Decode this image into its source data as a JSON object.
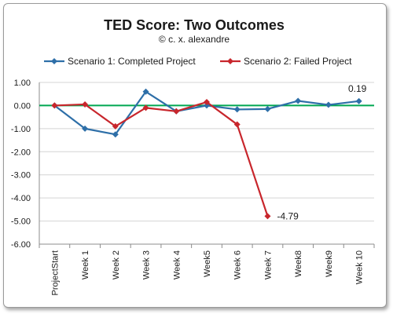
{
  "chart_data": {
    "type": "line",
    "title": "TED Score: Two Outcomes",
    "subtitle": "© c. x. alexandre",
    "categories": [
      "ProjectStart",
      "Week 1",
      "Week 2",
      "Week 3",
      "Week 4",
      "Week5",
      "Week 6",
      "Week 7",
      "Week8",
      "Week9",
      "Week 10"
    ],
    "ylim": [
      -6.0,
      1.0
    ],
    "yticks": [
      "1.00",
      "0.00",
      "-1.00",
      "-2.00",
      "-3.00",
      "-4.00",
      "-5.00",
      "-6.00"
    ],
    "ytick_values": [
      1,
      0,
      -1,
      -2,
      -3,
      -4,
      -5,
      -6
    ],
    "grid": true,
    "legend_position": "top",
    "zero_line_color": "#00a651",
    "series": [
      {
        "name": "Scenario 1: Completed Project",
        "color": "#2e6fa8",
        "marker": "diamond",
        "values": [
          0.0,
          -1.0,
          -1.25,
          0.6,
          -0.25,
          0.0,
          -0.17,
          -0.15,
          0.2,
          0.03,
          0.19
        ]
      },
      {
        "name": "Scenario 2: Failed Project",
        "color": "#c8262c",
        "marker": "diamond",
        "values": [
          0.0,
          0.05,
          -0.9,
          -0.1,
          -0.25,
          0.15,
          -0.82,
          -4.79,
          null,
          null,
          null
        ]
      }
    ],
    "annotations": [
      {
        "text": "0.19",
        "series": 0,
        "index": 10
      },
      {
        "text": "-4.79",
        "series": 1,
        "index": 7
      }
    ]
  }
}
